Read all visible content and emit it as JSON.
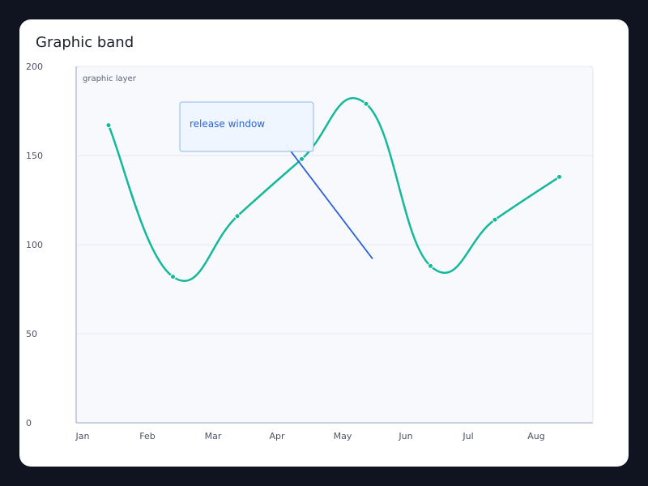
{
  "card": {
    "title": "Graphic band"
  },
  "chart_data": {
    "type": "line",
    "title": "Graphic band",
    "categories": [
      "Jan",
      "Feb",
      "Mar",
      "Apr",
      "May",
      "Jun",
      "Jul",
      "Aug"
    ],
    "series": [
      {
        "values": [
          167,
          82,
          116,
          148,
          179,
          88,
          114,
          138
        ],
        "color": "#14b89a"
      }
    ],
    "ylim": [
      0,
      200
    ],
    "yticks": [
      0,
      50,
      100,
      150,
      200
    ],
    "grid": true,
    "graphic_layer_label": "graphic layer",
    "annotation": {
      "label": "release window",
      "line_from": {
        "x": "Mar",
        "y": 156
      },
      "line_to": {
        "x": "May",
        "y": 92
      },
      "color": "#2b63d9"
    }
  }
}
